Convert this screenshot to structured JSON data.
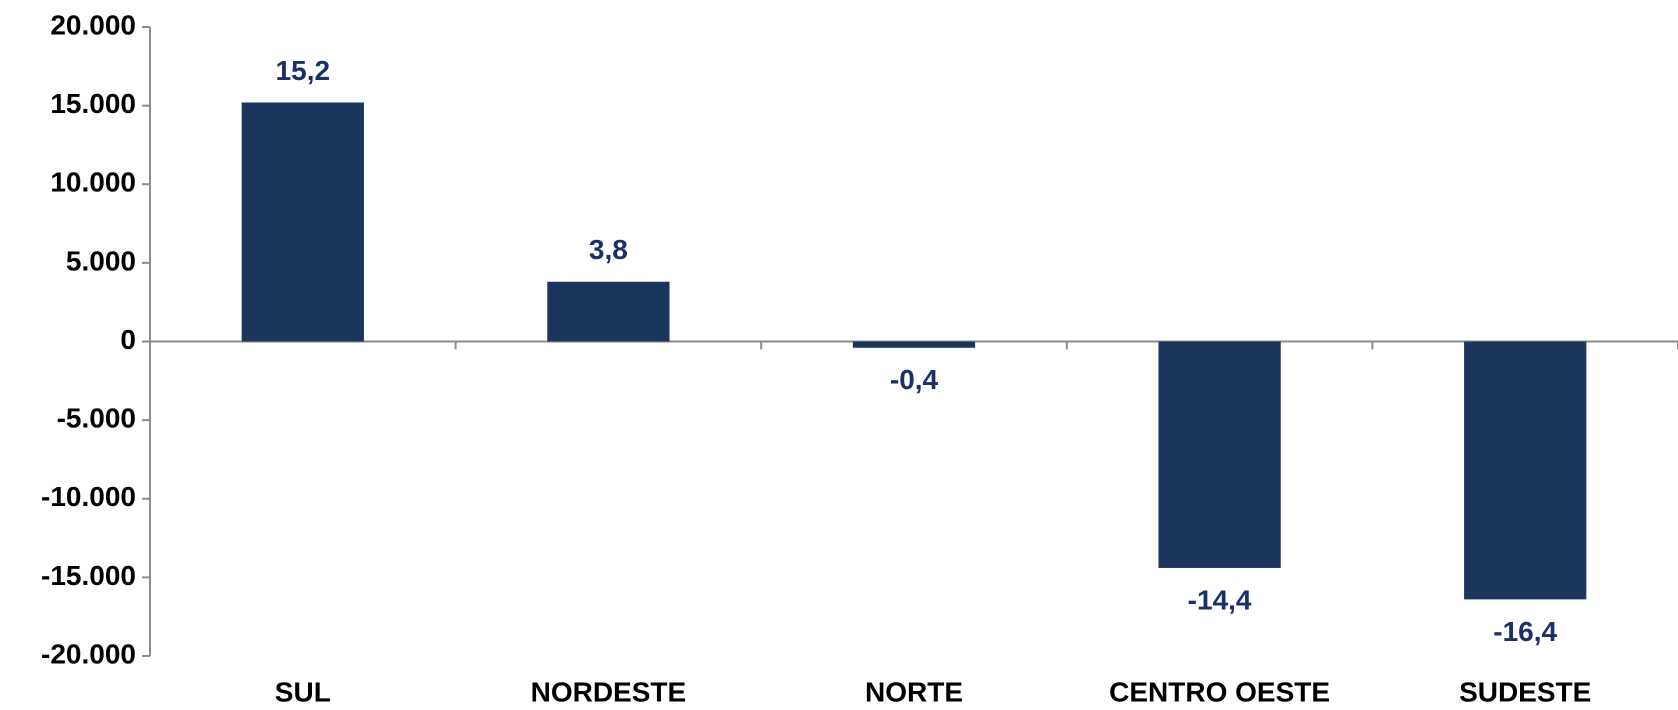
{
  "chart_data": {
    "type": "bar",
    "categories": [
      "SUL",
      "NORDESTE",
      "NORTE",
      "CENTRO OESTE",
      "SUDESTE"
    ],
    "values": [
      15200,
      3800,
      -400,
      -14400,
      -16400
    ],
    "value_labels": [
      "15,2",
      "3,8",
      "-0,4",
      "-14,4",
      "-16,4"
    ],
    "color": "#1b365d",
    "ylim": [
      -20000,
      20000
    ],
    "yticks": [
      {
        "value": -20000,
        "label": "-20.000"
      },
      {
        "value": -15000,
        "label": "-15.000"
      },
      {
        "value": -10000,
        "label": "-10.000"
      },
      {
        "value": -5000,
        "label": "-5.000"
      },
      0,
      {
        "value": 5000,
        "label": "5.000"
      },
      {
        "value": 10000,
        "label": "10.000"
      },
      {
        "value": 15000,
        "label": "15.000"
      },
      {
        "value": 20000,
        "label": "20.000"
      }
    ],
    "grid": false
  }
}
